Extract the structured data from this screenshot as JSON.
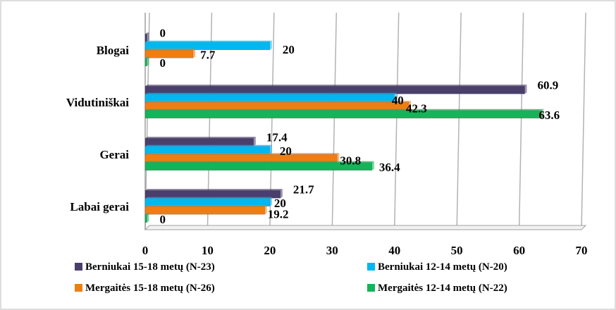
{
  "chart_data": {
    "type": "bar",
    "orientation": "horizontal",
    "categories": [
      "Blogai",
      "Vidutiniškai",
      "Gerai",
      "Labai gerai"
    ],
    "series": [
      {
        "name": "Berniukai 15-18 metų (N-23)",
        "color": "#4a3f6b",
        "values": [
          0,
          60.9,
          17.4,
          21.7
        ]
      },
      {
        "name": "Berniukai 12-14 metų (N-20)",
        "color": "#00b8f0",
        "values": [
          20,
          40,
          20,
          20
        ]
      },
      {
        "name": "Mergaitės 15-18 metų (N-26)",
        "color": "#ef7e12",
        "values": [
          7.7,
          42.3,
          30.8,
          19.2
        ]
      },
      {
        "name": "Mergaitės 12-14 metų (N-22)",
        "color": "#14b45a",
        "values": [
          0,
          63.6,
          36.4,
          0
        ]
      }
    ],
    "value_labels": [
      [
        "0",
        "20",
        "7.7",
        "0"
      ],
      [
        "60.9",
        "40",
        "42.3",
        "63.6"
      ],
      [
        "17.4",
        "20",
        "30.8",
        "36.4"
      ],
      [
        "21.7",
        "20",
        "19.2",
        "0"
      ]
    ],
    "xlim": [
      0,
      70
    ],
    "x_ticks": [
      "0",
      "10",
      "20",
      "30",
      "40",
      "50",
      "60",
      "70"
    ],
    "grid": true,
    "legend_position": "bottom",
    "title": "",
    "xlabel": "",
    "ylabel": ""
  }
}
